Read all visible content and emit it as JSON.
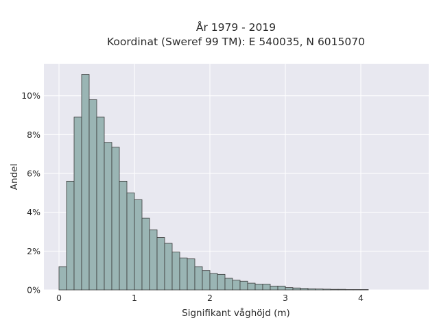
{
  "chart_data": {
    "type": "bar",
    "title_lines": [
      "År 1979 - 2019",
      "Koordinat (Sweref 99 TM): E 540035, N 6015070"
    ],
    "xlabel": "Signifikant våghöjd (m)",
    "ylabel": "Andel",
    "xlim": [
      -0.2,
      4.9
    ],
    "ylim": [
      0,
      11.65
    ],
    "xticks": [
      0,
      1,
      2,
      3,
      4
    ],
    "xtick_labels": [
      "0",
      "1",
      "2",
      "3",
      "4"
    ],
    "yticks": [
      0,
      2,
      4,
      6,
      8,
      10
    ],
    "ytick_labels": [
      "0%",
      "2%",
      "4%",
      "6%",
      "8%",
      "10%"
    ],
    "bin_width": 0.1,
    "bin_start": 0.0,
    "values": [
      1.2,
      5.6,
      8.9,
      11.1,
      9.8,
      8.9,
      7.6,
      7.35,
      5.6,
      5.0,
      4.65,
      3.7,
      3.1,
      2.7,
      2.4,
      1.95,
      1.65,
      1.6,
      1.2,
      1.0,
      0.85,
      0.8,
      0.6,
      0.5,
      0.45,
      0.35,
      0.3,
      0.3,
      0.2,
      0.2,
      0.12,
      0.1,
      0.08,
      0.06,
      0.05,
      0.04,
      0.03,
      0.03,
      0.02,
      0.02,
      0.02
    ],
    "grid": true,
    "colors": {
      "plot_bg": "#e8e8f0",
      "grid": "#ffffff",
      "bar_fill": "#9ab5b4",
      "bar_stroke": "#3a3a3a"
    }
  }
}
